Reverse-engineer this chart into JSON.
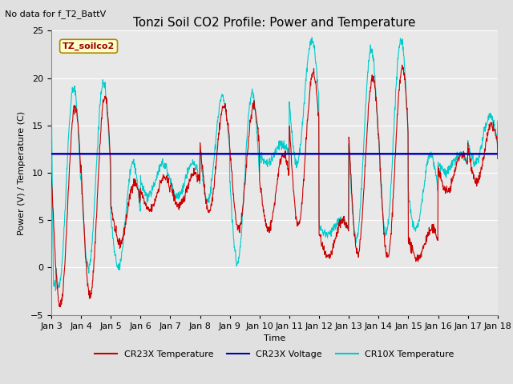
{
  "title": "Tonzi Soil CO2 Profile: Power and Temperature",
  "subtitle": "No data for f_T2_BattV",
  "xlabel": "Time",
  "ylabel": "Power (V) / Temperature (C)",
  "ylim": [
    -5,
    25
  ],
  "yticks": [
    -5,
    0,
    5,
    10,
    15,
    20,
    25
  ],
  "voltage_level": 12.0,
  "voltage_color": "#0000bb",
  "cr23x_color": "#cc0000",
  "cr10x_color": "#00cccc",
  "legend_items": [
    "CR23X Temperature",
    "CR23X Voltage",
    "CR10X Temperature"
  ],
  "legend_colors": [
    "#cc0000",
    "#0000bb",
    "#00cccc"
  ],
  "box_label": "TZ_soilco2",
  "box_facecolor": "#ffffcc",
  "box_edgecolor": "#aa8800",
  "plot_bg_color": "#e8e8e8",
  "fig_bg_color": "#e0e0e0",
  "grid_color": "#ffffff",
  "title_fontsize": 11,
  "axis_label_fontsize": 8,
  "tick_fontsize": 8,
  "legend_fontsize": 8,
  "subtitle_fontsize": 8,
  "xtick_labels": [
    "Jan 3",
    "Jan 4",
    "Jan 5",
    "Jan 6",
    "Jan 7",
    "Jan 8",
    "Jan 9",
    "Jan 10",
    "Jan 11",
    "Jan 12",
    "Jan 13",
    "Jan 14",
    "Jan 15",
    "Jan 16",
    "Jan 17",
    "Jan 18"
  ]
}
